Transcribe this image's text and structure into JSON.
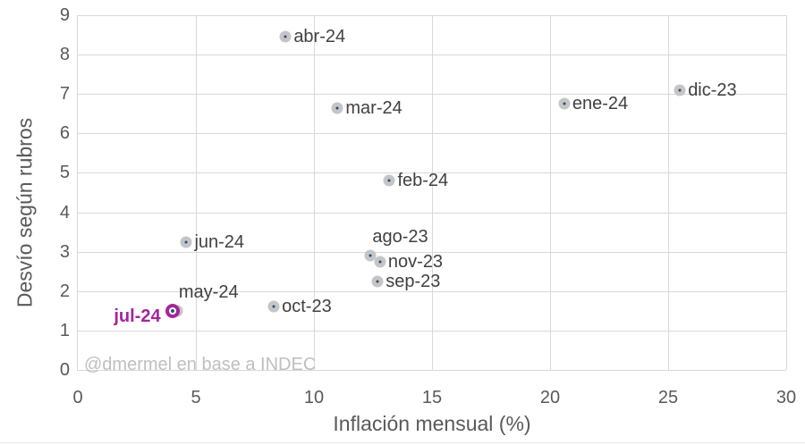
{
  "chart_data": {
    "type": "scatter",
    "title": "",
    "xlabel": "Inflación mensual (%)",
    "ylabel": "Desvío según rubros",
    "annotation": "@dmermel en base a INDEC",
    "xlim": [
      0,
      30
    ],
    "ylim": [
      0,
      9
    ],
    "x_ticks": [
      0,
      5,
      10,
      15,
      20,
      25,
      30
    ],
    "y_ticks": [
      0,
      1,
      2,
      3,
      4,
      5,
      6,
      7,
      8,
      9
    ],
    "grid": true,
    "legend_position": "none",
    "colors": {
      "marker": "#c5c5c5",
      "core": "#1f4e79",
      "accent": "#a3269c",
      "core2": "#1c5a6e",
      "grid": "#d9d9d9",
      "tick": "#595959",
      "label": "#404040",
      "watermark": "#bfbfbf"
    },
    "points": [
      {
        "label": "ago-23",
        "x": 12.4,
        "y": 2.9,
        "label_pos": "above",
        "highlight": false
      },
      {
        "label": "sep-23",
        "x": 12.7,
        "y": 2.25,
        "label_pos": "right",
        "highlight": false
      },
      {
        "label": "oct-23",
        "x": 8.3,
        "y": 1.6,
        "label_pos": "right",
        "highlight": false
      },
      {
        "label": "nov-23",
        "x": 12.8,
        "y": 2.75,
        "label_pos": "right",
        "highlight": false
      },
      {
        "label": "dic-23",
        "x": 25.5,
        "y": 7.1,
        "label_pos": "right",
        "highlight": false
      },
      {
        "label": "ene-24",
        "x": 20.6,
        "y": 6.75,
        "label_pos": "right",
        "highlight": false
      },
      {
        "label": "feb-24",
        "x": 13.2,
        "y": 4.8,
        "label_pos": "right",
        "highlight": false
      },
      {
        "label": "mar-24",
        "x": 11.0,
        "y": 6.65,
        "label_pos": "right",
        "highlight": false
      },
      {
        "label": "abr-24",
        "x": 8.8,
        "y": 8.45,
        "label_pos": "right",
        "highlight": false
      },
      {
        "label": "may-24",
        "x": 4.2,
        "y": 1.5,
        "label_pos": "above",
        "highlight": false
      },
      {
        "label": "jun-24",
        "x": 4.6,
        "y": 3.25,
        "label_pos": "right",
        "highlight": false
      },
      {
        "label": "jul-24",
        "x": 4.0,
        "y": 1.5,
        "label_pos": "left",
        "highlight": true
      }
    ]
  }
}
